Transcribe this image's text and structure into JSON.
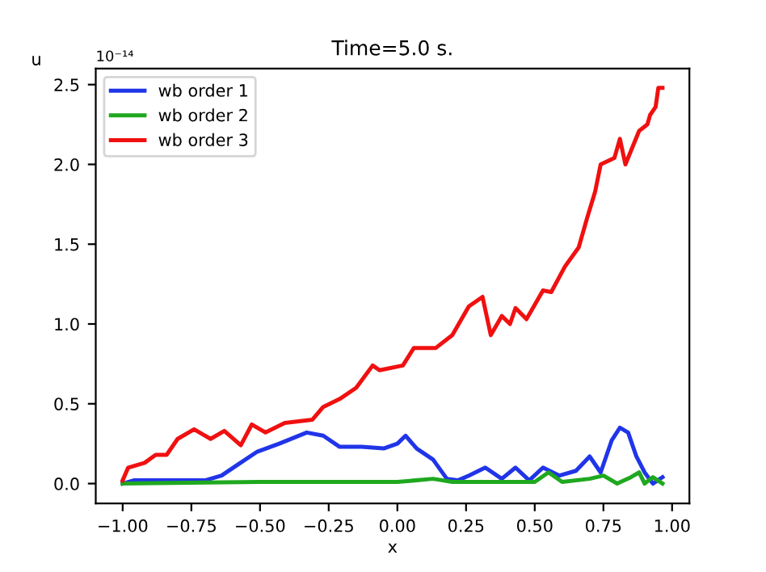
{
  "chart_data": {
    "type": "line",
    "title": "Time=5.0 s.",
    "xlabel": "x",
    "ylabel": "u",
    "annotations": [
      "10⁻¹⁴"
    ],
    "xlim": [
      -1.098,
      1.063
    ],
    "ylim": [
      -0.124,
      2.6
    ],
    "xticks": [
      {
        "value": -1,
        "label": "−1.00"
      },
      {
        "value": -0.75,
        "label": "−0.75"
      },
      {
        "value": -0.5,
        "label": "−0.50"
      },
      {
        "value": -0.25,
        "label": "−0.25"
      },
      {
        "value": 0,
        "label": "0.00"
      },
      {
        "value": 0.25,
        "label": "0.25"
      },
      {
        "value": 0.5,
        "label": "0.50"
      },
      {
        "value": 0.75,
        "label": "0.75"
      },
      {
        "value": 1,
        "label": "1.00"
      }
    ],
    "yticks": [
      {
        "value": 0,
        "label": "0.0"
      },
      {
        "value": 0.5,
        "label": "0.5"
      },
      {
        "value": 1,
        "label": "1.0"
      },
      {
        "value": 1.5,
        "label": "1.5"
      },
      {
        "value": 2,
        "label": "2.0"
      },
      {
        "value": 2.5,
        "label": "2.5"
      }
    ],
    "grid": false,
    "legend": "top left",
    "line_style": "solid",
    "series": [
      {
        "name": "wb order 1",
        "color": "#2035e8",
        "x": [
          -1,
          -0.96,
          -0.7,
          -0.64,
          -0.58,
          -0.51,
          -0.43,
          -0.33,
          -0.27,
          -0.21,
          -0.13,
          -0.05,
          0.0,
          0.03,
          0.07,
          0.13,
          0.18,
          0.22,
          0.26,
          0.32,
          0.38,
          0.43,
          0.48,
          0.53,
          0.59,
          0.65,
          0.7,
          0.74,
          0.78,
          0.81,
          0.84,
          0.87,
          0.9,
          0.93,
          0.965
        ],
        "values": [
          0,
          0.02,
          0.02,
          0.05,
          0.12,
          0.2,
          0.25,
          0.32,
          0.3,
          0.23,
          0.23,
          0.22,
          0.25,
          0.3,
          0.22,
          0.15,
          0.03,
          0.02,
          0.05,
          0.1,
          0.03,
          0.1,
          0.02,
          0.1,
          0.05,
          0.08,
          0.17,
          0.07,
          0.27,
          0.35,
          0.32,
          0.17,
          0.07,
          0,
          0.04
        ]
      },
      {
        "name": "wb order 2",
        "color": "#1fa81f",
        "x": [
          -1,
          -0.5,
          -0.25,
          0,
          0.13,
          0.2,
          0.4,
          0.5,
          0.55,
          0.6,
          0.7,
          0.75,
          0.8,
          0.85,
          0.88,
          0.9,
          0.93,
          0.965
        ],
        "values": [
          0,
          0.01,
          0.01,
          0.01,
          0.03,
          0.01,
          0.01,
          0.01,
          0.07,
          0.01,
          0.03,
          0.05,
          0,
          0.04,
          0.07,
          0,
          0.04,
          0
        ]
      },
      {
        "name": "wb order 3",
        "color": "#f01010",
        "x": [
          -1,
          -0.98,
          -0.92,
          -0.88,
          -0.84,
          -0.8,
          -0.74,
          -0.68,
          -0.63,
          -0.57,
          -0.53,
          -0.48,
          -0.41,
          -0.31,
          -0.27,
          -0.21,
          -0.15,
          -0.09,
          -0.065,
          0.02,
          0.06,
          0.14,
          0.2,
          0.26,
          0.31,
          0.34,
          0.38,
          0.41,
          0.43,
          0.47,
          0.53,
          0.56,
          0.61,
          0.66,
          0.69,
          0.72,
          0.74,
          0.79,
          0.81,
          0.83,
          0.88,
          0.91,
          0.92,
          0.94,
          0.95,
          0.965
        ],
        "values": [
          0.02,
          0.1,
          0.13,
          0.18,
          0.18,
          0.28,
          0.34,
          0.28,
          0.33,
          0.24,
          0.37,
          0.32,
          0.38,
          0.4,
          0.48,
          0.53,
          0.6,
          0.74,
          0.71,
          0.74,
          0.85,
          0.85,
          0.93,
          1.11,
          1.17,
          0.93,
          1.05,
          1.0,
          1.1,
          1.03,
          1.21,
          1.2,
          1.36,
          1.48,
          1.66,
          1.83,
          2.0,
          2.04,
          2.16,
          2.0,
          2.21,
          2.25,
          2.31,
          2.36,
          2.48,
          2.48
        ]
      }
    ]
  }
}
